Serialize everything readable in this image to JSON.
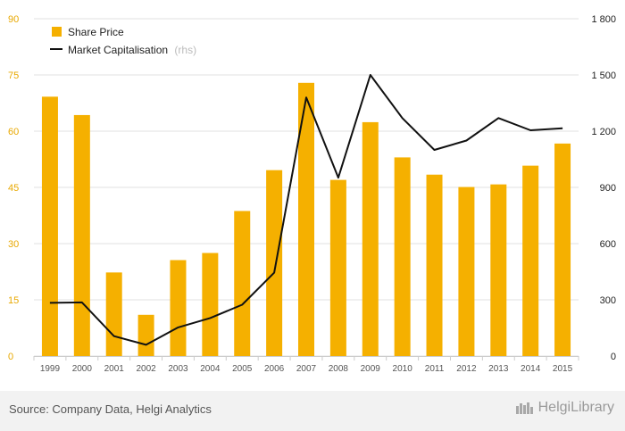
{
  "chart_data": {
    "type": "bar+line",
    "categories": [
      "1999",
      "2000",
      "2001",
      "2002",
      "2003",
      "2004",
      "2005",
      "2006",
      "2007",
      "2008",
      "2009",
      "2010",
      "2011",
      "2012",
      "2013",
      "2014",
      "2015"
    ],
    "series": [
      {
        "name": "Share Price",
        "type": "bar",
        "axis": "left",
        "values": [
          69.2,
          64.3,
          22.3,
          11.0,
          25.6,
          27.5,
          38.7,
          49.6,
          72.9,
          47.0,
          62.4,
          53.0,
          48.4,
          45.1,
          45.8,
          50.8,
          56.7
        ]
      },
      {
        "name": "Market Capitalisation",
        "name_suffix": "(rhs)",
        "type": "line",
        "axis": "right",
        "values": [
          284,
          286,
          106,
          60,
          153,
          203,
          274,
          445,
          1380,
          952,
          1500,
          1270,
          1100,
          1150,
          1270,
          1205,
          1215
        ]
      }
    ],
    "left_axis": {
      "min": 0,
      "max": 90,
      "ticks": [
        "0",
        "15",
        "30",
        "45",
        "60",
        "75",
        "90"
      ]
    },
    "right_axis": {
      "min": 0,
      "max": 1800,
      "ticks": [
        "0",
        "300",
        "600",
        "900",
        "1 200",
        "1 500",
        "1 800"
      ]
    },
    "grid": true,
    "legend_position": "top-left",
    "colors": {
      "bar": "#f5b000",
      "line": "#111111",
      "left_tick": "#e8a800",
      "right_tick": "#222222",
      "grid": "#e2e2e2"
    }
  },
  "footer": {
    "source": "Source: Company Data, Helgi Analytics",
    "brand": "HelgiLibrary"
  }
}
